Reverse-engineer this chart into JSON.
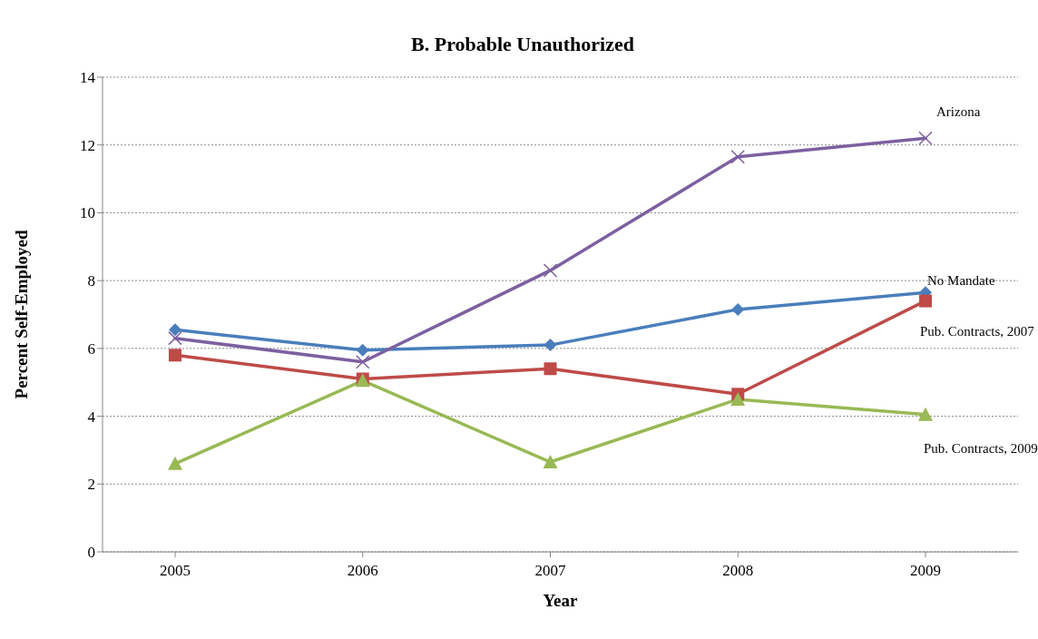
{
  "chart_data": {
    "type": "line",
    "title": "B. Probable Unauthorized",
    "xlabel": "Year",
    "ylabel": "Percent Self-Employed",
    "categories": [
      "2005",
      "2006",
      "2007",
      "2008",
      "2009"
    ],
    "series": [
      {
        "name": "No Mandate",
        "color": "#4a7ebb",
        "marker": "diamond",
        "values": [
          6.55,
          5.95,
          6.1,
          7.15,
          7.65
        ]
      },
      {
        "name": "Pub. Contracts, 2007",
        "color": "#be4b48",
        "marker": "square",
        "values": [
          5.8,
          5.1,
          5.4,
          4.65,
          7.4
        ]
      },
      {
        "name": "Pub. Contracts, 2009",
        "color": "#98b954",
        "marker": "triangle",
        "values": [
          2.6,
          5.05,
          2.65,
          4.5,
          4.05
        ]
      },
      {
        "name": "Arizona",
        "color": "#7d60a0",
        "marker": "cross",
        "values": [
          6.3,
          5.6,
          8.3,
          11.65,
          12.2
        ]
      }
    ],
    "ylim": [
      0,
      14
    ],
    "yticks": [
      0,
      2,
      4,
      6,
      8,
      10,
      12,
      14
    ],
    "grid": "y",
    "legend": false
  }
}
